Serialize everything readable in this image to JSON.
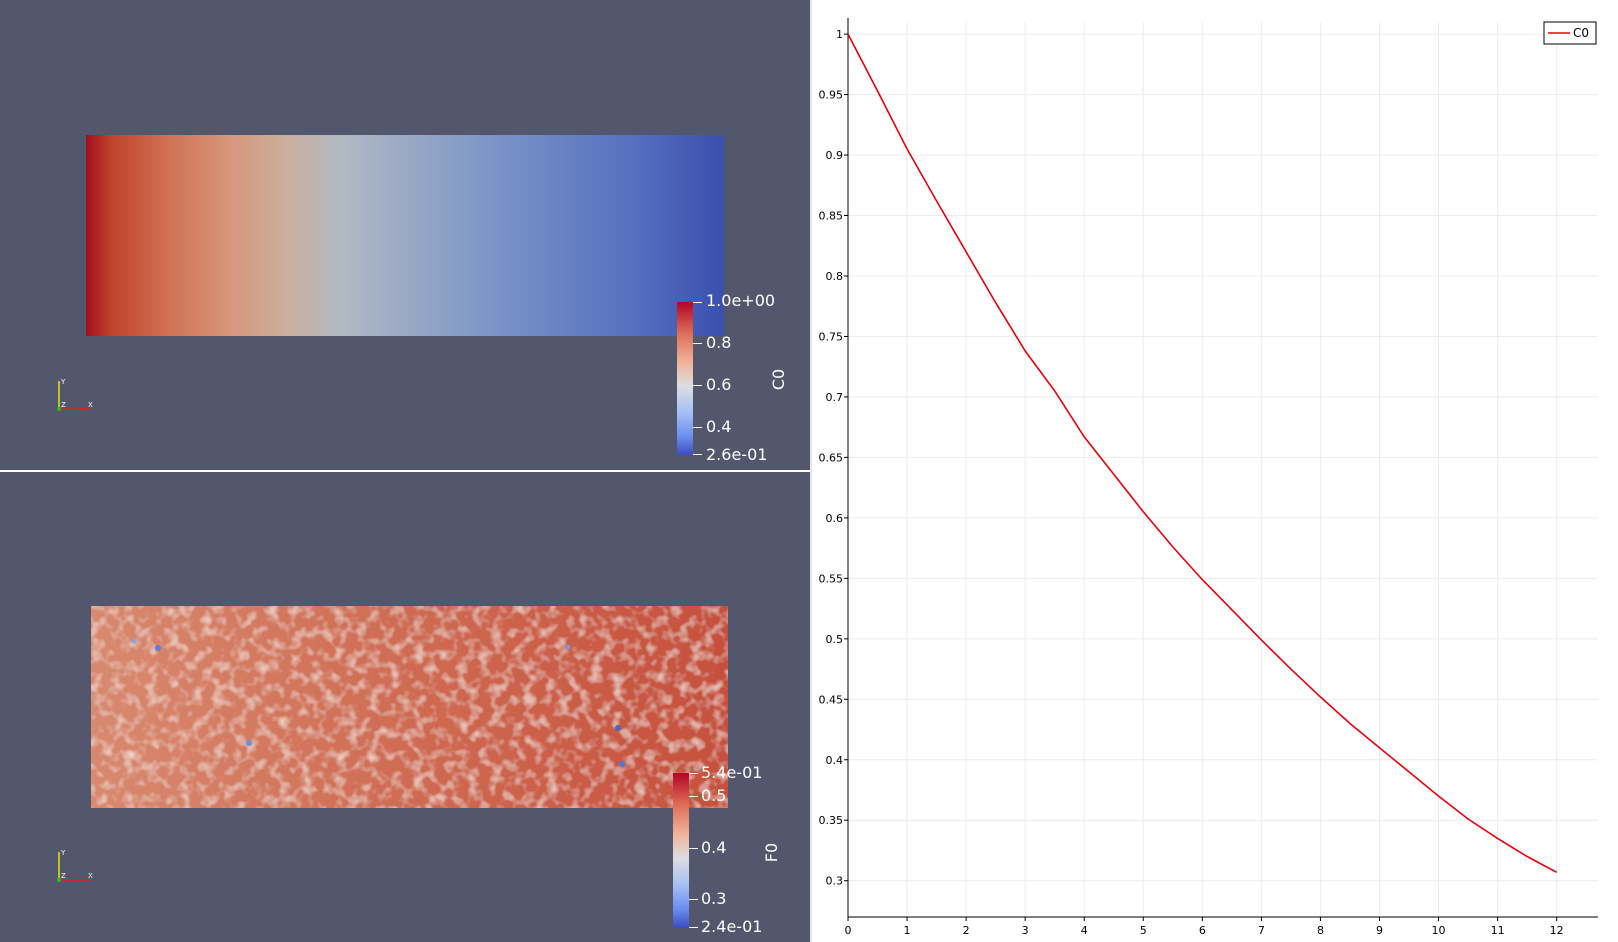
{
  "views": {
    "top": {
      "scalar_name": "C0",
      "colorbar": {
        "labels": [
          {
            "text": "1.0e+00",
            "value": 1.0
          },
          {
            "text": "0.8",
            "value": 0.8
          },
          {
            "text": "0.6",
            "value": 0.6
          },
          {
            "text": "0.4",
            "value": 0.4
          },
          {
            "text": "2.6e-01",
            "value": 0.26
          }
        ],
        "range": [
          0.26,
          1.0
        ]
      },
      "axes": {
        "y": "Y",
        "z": "Z",
        "x": "X"
      }
    },
    "bottom": {
      "scalar_name": "F0",
      "colorbar": {
        "labels": [
          {
            "text": "5.4e-01",
            "value": 0.54
          },
          {
            "text": "0.5",
            "value": 0.5
          },
          {
            "text": "0.4",
            "value": 0.4
          },
          {
            "text": "0.3",
            "value": 0.3
          },
          {
            "text": "2.4e-01",
            "value": 0.24
          }
        ],
        "range": [
          0.24,
          0.54
        ]
      },
      "axes": {
        "y": "Y",
        "z": "Z",
        "x": "X"
      }
    }
  },
  "colors": {
    "background": "#52576e",
    "line": "#e8000b",
    "colormap_high": "#b40426",
    "colormap_low": "#3b4cc0"
  },
  "chart_data": {
    "type": "line",
    "title": "",
    "xlabel": "",
    "ylabel": "",
    "xlim": [
      0,
      12.7
    ],
    "ylim": [
      0.27,
      1.01
    ],
    "xticks": [
      0,
      1,
      2,
      3,
      4,
      5,
      6,
      7,
      8,
      9,
      10,
      11,
      12
    ],
    "yticks": [
      0.3,
      0.35,
      0.4,
      0.45,
      0.5,
      0.55,
      0.6,
      0.65,
      0.7,
      0.75,
      0.8,
      0.85,
      0.9,
      0.95,
      1
    ],
    "grid": true,
    "legend": "top-right",
    "series": [
      {
        "name": "C0",
        "x": [
          0,
          0.5,
          1,
          1.5,
          2,
          2.5,
          3,
          3.5,
          4,
          4.5,
          5,
          5.5,
          6,
          6.5,
          7,
          7.5,
          8,
          8.5,
          9,
          9.5,
          10,
          10.5,
          11,
          11.5,
          12
        ],
        "values": [
          1.0,
          0.953,
          0.905,
          0.862,
          0.82,
          0.778,
          0.738,
          0.705,
          0.667,
          0.636,
          0.605,
          0.576,
          0.549,
          0.524,
          0.499,
          0.475,
          0.452,
          0.43,
          0.41,
          0.39,
          0.37,
          0.351,
          0.335,
          0.32,
          0.307
        ]
      }
    ]
  }
}
